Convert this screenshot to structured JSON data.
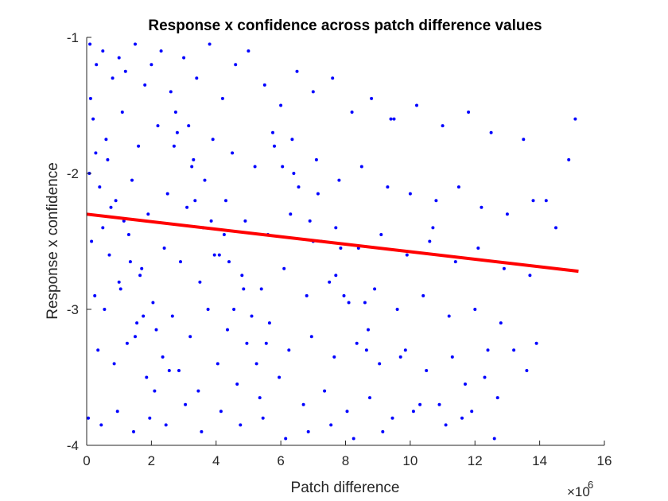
{
  "chart_data": {
    "type": "scatter",
    "title": "Response x confidence across patch difference values",
    "xlabel": "Patch difference",
    "ylabel": "Response x confidence",
    "x_exponent_label": "×10",
    "x_exponent_power": "6",
    "xlim": [
      0,
      16
    ],
    "ylim": [
      -4,
      -1
    ],
    "x_ticks": [
      0,
      2,
      4,
      6,
      8,
      10,
      12,
      14,
      16
    ],
    "x_tick_labels": [
      "0",
      "2",
      "4",
      "6",
      "8",
      "10",
      "12",
      "14",
      "16"
    ],
    "y_ticks": [
      -4,
      -3,
      -2,
      -1
    ],
    "y_tick_labels": [
      "-4",
      "-3",
      "-2",
      "-1"
    ],
    "grid": false,
    "colors": {
      "points": "#0000ff",
      "fit_line": "#ff0000",
      "axes": "#262626"
    },
    "fit_line": {
      "x": [
        0,
        15.2
      ],
      "y": [
        -2.3,
        -2.72
      ]
    },
    "series": [
      {
        "x": [
          0.1,
          0.3,
          0.5,
          0.8,
          1.0,
          1.2,
          1.5,
          1.8,
          2.0,
          2.3,
          2.6,
          3.0,
          3.4,
          3.8,
          4.2,
          4.6,
          5.0,
          5.5,
          6.0,
          6.5,
          7.0,
          7.6,
          8.2,
          8.8,
          9.5,
          10.2,
          11.0,
          11.8,
          12.5,
          13.5,
          14.2,
          14.9,
          15.1,
          0.2,
          0.6,
          1.1,
          1.6,
          2.2,
          2.8,
          3.3,
          3.9,
          4.5,
          5.2,
          5.8,
          6.4,
          7.1,
          7.8,
          8.5,
          9.3,
          10.0,
          10.8,
          11.5,
          12.2,
          13.0,
          13.8,
          14.5,
          0.4,
          0.9,
          1.4,
          1.9,
          2.5,
          3.1,
          3.6,
          4.3,
          4.9,
          5.6,
          6.3,
          7.0,
          7.7,
          8.4,
          9.1,
          9.9,
          10.6,
          11.4,
          12.1,
          12.9,
          13.7,
          0.15,
          0.7,
          1.3,
          1.7,
          2.4,
          2.9,
          3.5,
          4.1,
          4.8,
          5.4,
          6.1,
          6.8,
          7.5,
          8.1,
          8.9,
          9.6,
          10.4,
          11.2,
          12.0,
          12.8,
          0.25,
          0.55,
          1.05,
          1.55,
          2.05,
          2.65,
          3.2,
          3.75,
          4.35,
          4.95,
          5.65,
          6.25,
          6.95,
          7.65,
          8.35,
          9.05,
          9.85,
          10.5,
          11.3,
          12.3,
          13.2,
          0.35,
          0.85,
          1.25,
          1.85,
          2.35,
          2.85,
          3.45,
          4.05,
          4.65,
          5.35,
          5.95,
          6.7,
          7.35,
          8.05,
          8.75,
          9.45,
          10.3,
          11.1,
          11.9,
          0.05,
          0.45,
          0.95,
          1.45,
          1.95,
          2.45,
          3.05,
          3.55,
          4.15,
          4.75,
          5.45,
          6.15,
          6.85,
          7.55,
          8.25,
          9.15,
          10.1,
          11.6,
          12.6,
          13.9,
          0.12,
          0.65,
          1.15,
          1.65,
          2.15,
          2.75,
          3.25,
          3.85,
          4.4,
          5.1,
          5.75,
          6.55,
          7.25,
          7.95,
          8.65,
          9.4,
          10.7,
          12.4,
          0.28,
          0.75,
          1.35,
          1.75,
          2.55,
          3.15,
          3.65,
          4.25,
          4.85,
          5.55,
          6.35,
          7.15,
          7.85,
          8.6,
          9.7,
          11.7,
          13.6,
          0.08,
          0.5,
          1.0,
          1.5,
          2.1,
          2.7,
          3.35,
          3.95,
          4.55,
          5.25,
          6.05,
          6.9,
          7.7,
          8.7,
          10.9,
          12.7
        ],
        "y": [
          -1.05,
          -1.2,
          -1.1,
          -1.3,
          -1.15,
          -1.25,
          -1.05,
          -1.35,
          -1.2,
          -1.1,
          -1.4,
          -1.15,
          -1.3,
          -1.05,
          -1.45,
          -1.2,
          -1.1,
          -1.35,
          -1.5,
          -1.25,
          -1.4,
          -1.3,
          -1.55,
          -1.45,
          -1.6,
          -1.5,
          -1.65,
          -1.55,
          -1.7,
          -1.75,
          -2.2,
          -1.9,
          -1.6,
          -1.6,
          -1.75,
          -1.55,
          -1.8,
          -1.65,
          -1.7,
          -1.9,
          -1.75,
          -1.85,
          -1.95,
          -1.8,
          -2.0,
          -1.9,
          -2.05,
          -1.95,
          -2.1,
          -2.15,
          -2.2,
          -2.1,
          -2.25,
          -2.3,
          -2.2,
          -2.4,
          -2.1,
          -2.2,
          -2.05,
          -2.3,
          -2.15,
          -2.25,
          -2.4,
          -2.2,
          -2.35,
          -2.45,
          -2.3,
          -2.5,
          -2.4,
          -2.55,
          -2.45,
          -2.6,
          -2.5,
          -2.65,
          -2.55,
          -2.7,
          -2.75,
          -2.5,
          -2.6,
          -2.45,
          -2.7,
          -2.55,
          -2.65,
          -2.8,
          -2.6,
          -2.75,
          -2.85,
          -2.7,
          -2.9,
          -2.8,
          -2.95,
          -2.85,
          -3.0,
          -2.9,
          -3.05,
          -3.0,
          -3.1,
          -2.9,
          -3.0,
          -2.85,
          -3.1,
          -2.95,
          -3.05,
          -3.2,
          -3.0,
          -3.15,
          -3.25,
          -3.1,
          -3.3,
          -3.2,
          -3.35,
          -3.25,
          -3.4,
          -3.3,
          -3.45,
          -3.35,
          -3.5,
          -3.3,
          -3.3,
          -3.4,
          -3.25,
          -3.5,
          -3.35,
          -3.45,
          -3.6,
          -3.4,
          -3.55,
          -3.65,
          -3.5,
          -3.7,
          -3.6,
          -3.75,
          -3.65,
          -3.8,
          -3.7,
          -3.85,
          -3.75,
          -3.8,
          -3.85,
          -3.75,
          -3.9,
          -3.8,
          -3.85,
          -3.7,
          -3.9,
          -3.75,
          -3.85,
          -3.8,
          -3.95,
          -3.9,
          -3.85,
          -3.95,
          -3.9,
          -3.75,
          -3.8,
          -3.95,
          -3.25,
          -1.45,
          -1.9,
          -2.35,
          -2.75,
          -3.15,
          -1.55,
          -1.95,
          -2.35,
          -2.65,
          -3.05,
          -1.7,
          -2.1,
          -2.5,
          -2.9,
          -3.3,
          -1.6,
          -2.4,
          -3.3,
          -1.85,
          -2.25,
          -2.65,
          -3.05,
          -3.45,
          -1.65,
          -2.05,
          -2.45,
          -2.85,
          -3.25,
          -1.75,
          -2.15,
          -2.55,
          -2.95,
          -3.35,
          -3.55,
          -3.45,
          -2.0,
          -2.4,
          -2.8,
          -3.2,
          -3.6,
          -1.8,
          -2.2,
          -2.6,
          -3.0,
          -3.4,
          -1.95,
          -2.35,
          -2.75,
          -3.15,
          -3.7,
          -3.65
        ]
      }
    ]
  }
}
